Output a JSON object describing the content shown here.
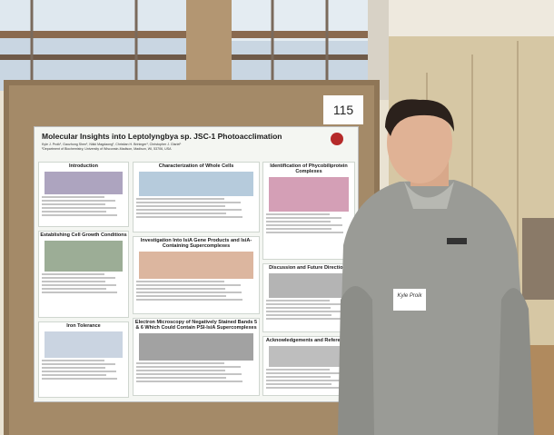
{
  "card_number": "115",
  "poster": {
    "title": "Molecular Insights into Leptolyngbya sp. JSC-1 Photoacclimation",
    "authors": "Kyle J. Proik¹, Gaozhong Shen¹, Nikki Magdaong¹, Christian H. Brininger¹, Christopher J. Gisriel¹",
    "affiliation": "¹Department of Biochemistry, University of Wisconsin-Madison, Madison, WI, 53706, USA",
    "sections": [
      "Introduction",
      "Characterization of Whole Cells",
      "Identification of Phycobiliprotein Complexes",
      "Establishing Cell Growth Conditions",
      "Investigation Into IsiA Gene Products and IsiA-Containing Supercomplexes",
      "Discussion and Future Directions",
      "Iron Tolerance",
      "Electron Microscopy of Negatively Stained Bands 5 & 6 Which Could Contain PSI-IsiA Supercomplexes",
      "Acknowledgements and References"
    ]
  },
  "name_tag": "Kyle Proik"
}
